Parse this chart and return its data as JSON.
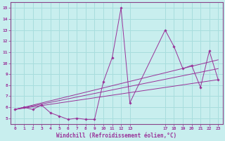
{
  "xlabel": "Windchill (Refroidissement éolien,°C)",
  "background_color": "#c8eeee",
  "grid_color": "#a8dddd",
  "line_color": "#993399",
  "spine_color": "#884488",
  "xlim": [
    -0.5,
    23.5
  ],
  "ylim": [
    4.5,
    15.5
  ],
  "xticks": [
    0,
    1,
    2,
    3,
    4,
    5,
    6,
    7,
    8,
    9,
    10,
    11,
    12,
    13,
    17,
    18,
    19,
    20,
    21,
    22,
    23
  ],
  "yticks": [
    5,
    6,
    7,
    8,
    9,
    10,
    11,
    12,
    13,
    14,
    15
  ],
  "main_x": [
    0,
    1,
    2,
    3,
    4,
    5,
    6,
    7,
    8,
    9,
    10,
    11,
    12,
    13,
    17,
    18,
    19,
    20,
    21,
    22,
    23
  ],
  "main_y": [
    5.8,
    6.0,
    5.8,
    6.2,
    5.5,
    5.2,
    4.9,
    5.0,
    4.9,
    4.9,
    8.3,
    10.5,
    15.0,
    6.4,
    13.0,
    11.5,
    9.5,
    9.8,
    7.8,
    11.1,
    8.5
  ],
  "trend1_x": [
    0,
    23
  ],
  "trend1_y": [
    5.8,
    10.3
  ],
  "trend2_x": [
    0,
    23
  ],
  "trend2_y": [
    5.8,
    9.5
  ],
  "trend3_x": [
    0,
    23
  ],
  "trend3_y": [
    5.8,
    8.5
  ]
}
